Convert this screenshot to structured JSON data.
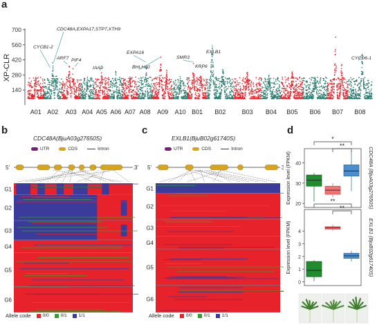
{
  "panels": {
    "a": "a",
    "b": "b",
    "c": "c",
    "d": "d"
  },
  "colors": {
    "red": "#e8222a",
    "teal": "#2b7a6e",
    "blue": "#3b3b9c",
    "green": "#33a02c",
    "utr": "#7a1d7a",
    "cds": "#d9a41c",
    "box_green": "#1f8c2e",
    "box_salmon": "#f07272",
    "box_blue": "#4a8fd0"
  },
  "chart_data": [
    {
      "type": "scatter",
      "title": "",
      "ylabel": "XP-CLR",
      "ylim": [
        0,
        700
      ],
      "yticks": [
        "140",
        "280",
        "420",
        "560",
        "700"
      ],
      "categories": [
        "A01",
        "A02",
        "A03",
        "A04",
        "A05",
        "A06",
        "A07",
        "A08",
        "A09",
        "A10",
        "B01",
        "B02",
        "B03",
        "B04",
        "B05",
        "B06",
        "B07",
        "B08"
      ],
      "annotations": [
        {
          "label": "CYCB1-2",
          "chrom": "A02"
        },
        {
          "label": "CDC48A,EXPA17,STP7,XTH9",
          "chrom": "A02"
        },
        {
          "label": "ARF7",
          "chrom": "A03"
        },
        {
          "label": "PIF4",
          "chrom": "A03"
        },
        {
          "label": "IAA9",
          "chrom": "A05"
        },
        {
          "label": "EXPA16",
          "chrom": "A08"
        },
        {
          "label": "BHLH60",
          "chrom": "A09"
        },
        {
          "label": "SMR3",
          "chrom": "B01"
        },
        {
          "label": "KRP6",
          "chrom": "B01"
        },
        {
          "label": "EXLB1",
          "chrom": "B02"
        },
        {
          "label": "CYCD6-1",
          "chrom": "B08"
        }
      ]
    },
    {
      "type": "heatmap",
      "title": "CDC48A(BjuA03g27650S)",
      "legend": {
        "title": "Allele code",
        "items": [
          "0/0",
          "0/1",
          "1/1"
        ]
      },
      "gene_legend": [
        "UTR",
        "CDS",
        "Intron"
      ],
      "groups": [
        "G1",
        "G2",
        "G3",
        "G4",
        "G5",
        "G6"
      ],
      "group_row_fractions": [
        0.09,
        0.2,
        0.15,
        0.1,
        0.26,
        0.2
      ]
    },
    {
      "type": "heatmap",
      "title": "EXLB1(BjuB02g61740S)",
      "legend": {
        "title": "Allele code",
        "items": [
          "0/0",
          "0/1",
          "1/1"
        ]
      },
      "gene_legend": [
        "UTR",
        "CDS",
        "Intron"
      ],
      "groups": [
        "G1",
        "G2",
        "G3",
        "G4",
        "G5",
        "G6"
      ]
    },
    {
      "type": "box",
      "ylabel": "Expression level (FPKM)",
      "side_title": "CDC48A (BjuA03g27650S)",
      "ylim": [
        18,
        47
      ],
      "yticks": [
        "20",
        "30",
        "40"
      ],
      "series": [
        {
          "name": "",
          "min": 21,
          "q1": 28.5,
          "median": 31.5,
          "q3": 34,
          "max": 35
        },
        {
          "name": "",
          "min": 23,
          "q1": 24.5,
          "median": 26.5,
          "q3": 28.5,
          "max": 30
        },
        {
          "name": "",
          "min": 26,
          "q1": 33.5,
          "median": 36,
          "q3": 39,
          "max": 46
        }
      ],
      "significance": [
        "*",
        "**"
      ]
    },
    {
      "type": "box",
      "ylabel": "Expression level (FPKM)",
      "side_title": "EXLB1 (BjuB02g61740S)",
      "ylim": [
        -0.3,
        5.7
      ],
      "yticks": [
        "0",
        "1",
        "2",
        "3",
        "4"
      ],
      "series": [
        {
          "name": "",
          "min": 0.05,
          "q1": 0.4,
          "median": 0.9,
          "q3": 1.6,
          "max": 1.7
        },
        {
          "name": "",
          "min": 4.05,
          "q1": 4.15,
          "median": 4.25,
          "q3": 4.35,
          "max": 4.5
        },
        {
          "name": "",
          "min": 1.6,
          "q1": 1.85,
          "median": 2.05,
          "q3": 2.25,
          "max": 2.45
        }
      ],
      "significance": [
        "**",
        "**"
      ]
    }
  ]
}
